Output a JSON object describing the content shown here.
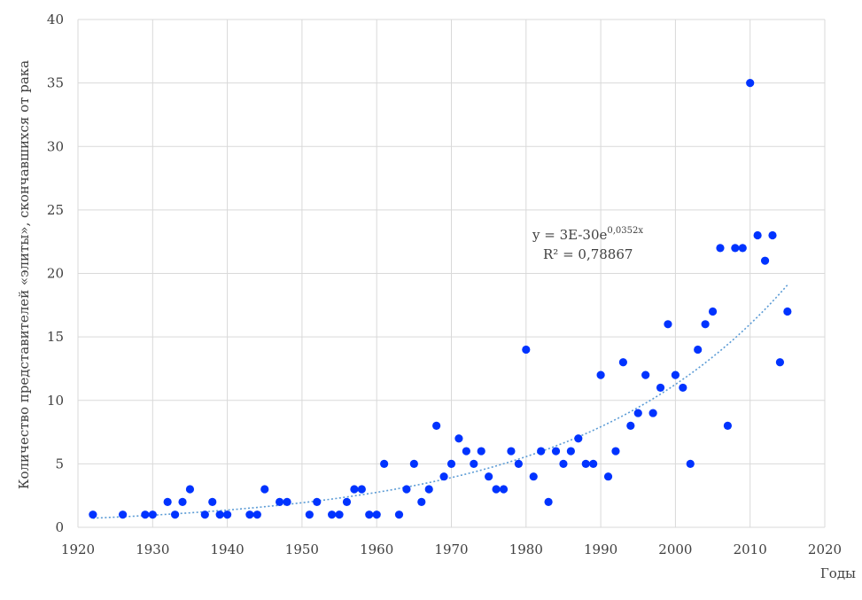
{
  "chart_data": {
    "type": "scatter",
    "title": "",
    "xlabel": "Годы",
    "ylabel": "Количество представителей «элиты», скончавшихся от рака",
    "xlim": [
      1920,
      2020
    ],
    "ylim": [
      0,
      40
    ],
    "xticks": [
      1920,
      1930,
      1940,
      1950,
      1960,
      1970,
      1980,
      1990,
      2000,
      2010,
      2020
    ],
    "yticks": [
      0,
      5,
      10,
      15,
      20,
      25,
      30,
      35,
      40
    ],
    "grid": true,
    "legend": "none",
    "point_color": "#0033ff",
    "trend_color": "#5b9bd5",
    "trendline": {
      "type": "exponential",
      "a": 3e-30,
      "b": 0.0352,
      "x_start": 1922,
      "x_end": 2015,
      "equation_text": "y = 3E-30e",
      "equation_exponent": "0,0352x",
      "r2_text": "R² = 0,78867"
    },
    "points": [
      [
        1922,
        1
      ],
      [
        1926,
        1
      ],
      [
        1929,
        1
      ],
      [
        1930,
        1
      ],
      [
        1932,
        2
      ],
      [
        1933,
        1
      ],
      [
        1934,
        2
      ],
      [
        1935,
        3
      ],
      [
        1937,
        1
      ],
      [
        1938,
        2
      ],
      [
        1939,
        1
      ],
      [
        1940,
        1
      ],
      [
        1943,
        1
      ],
      [
        1944,
        1
      ],
      [
        1945,
        3
      ],
      [
        1947,
        2
      ],
      [
        1948,
        2
      ],
      [
        1951,
        1
      ],
      [
        1952,
        2
      ],
      [
        1954,
        1
      ],
      [
        1955,
        1
      ],
      [
        1956,
        2
      ],
      [
        1957,
        3
      ],
      [
        1958,
        3
      ],
      [
        1959,
        1
      ],
      [
        1960,
        1
      ],
      [
        1961,
        5
      ],
      [
        1963,
        1
      ],
      [
        1964,
        3
      ],
      [
        1965,
        5
      ],
      [
        1966,
        2
      ],
      [
        1967,
        3
      ],
      [
        1968,
        8
      ],
      [
        1969,
        4
      ],
      [
        1970,
        5
      ],
      [
        1971,
        7
      ],
      [
        1972,
        6
      ],
      [
        1973,
        5
      ],
      [
        1974,
        6
      ],
      [
        1975,
        4
      ],
      [
        1976,
        3
      ],
      [
        1977,
        3
      ],
      [
        1978,
        6
      ],
      [
        1979,
        5
      ],
      [
        1980,
        14
      ],
      [
        1981,
        4
      ],
      [
        1982,
        6
      ],
      [
        1983,
        2
      ],
      [
        1984,
        6
      ],
      [
        1985,
        5
      ],
      [
        1986,
        6
      ],
      [
        1987,
        7
      ],
      [
        1988,
        5
      ],
      [
        1989,
        5
      ],
      [
        1990,
        12
      ],
      [
        1991,
        4
      ],
      [
        1992,
        6
      ],
      [
        1993,
        13
      ],
      [
        1994,
        8
      ],
      [
        1995,
        9
      ],
      [
        1996,
        12
      ],
      [
        1997,
        9
      ],
      [
        1998,
        11
      ],
      [
        1999,
        16
      ],
      [
        2000,
        12
      ],
      [
        2001,
        11
      ],
      [
        2002,
        5
      ],
      [
        2003,
        14
      ],
      [
        2004,
        16
      ],
      [
        2005,
        17
      ],
      [
        2006,
        22
      ],
      [
        2007,
        8
      ],
      [
        2008,
        22
      ],
      [
        2009,
        22
      ],
      [
        2010,
        35
      ],
      [
        2011,
        23
      ],
      [
        2012,
        21
      ],
      [
        2013,
        23
      ],
      [
        2014,
        13
      ],
      [
        2015,
        17
      ]
    ]
  }
}
